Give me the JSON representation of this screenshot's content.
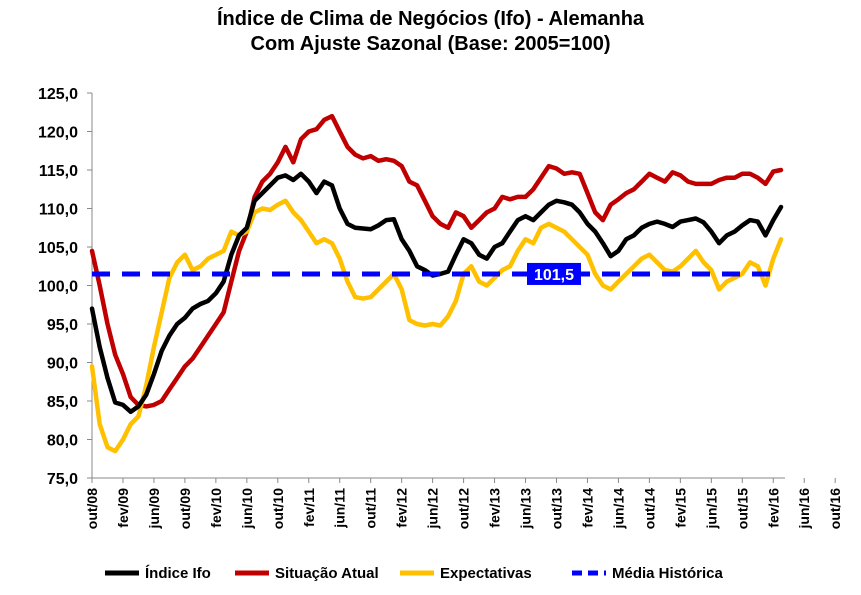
{
  "chart_data": {
    "type": "line",
    "title": "Índice de Clima de Negócios (Ifo) - Alemanha",
    "subtitle": "Com Ajuste Sazonal (Base: 2005=100)",
    "xlabel": "",
    "ylabel": "",
    "ylim": [
      75,
      125
    ],
    "yticks": [
      "75,0",
      "80,0",
      "85,0",
      "90,0",
      "95,0",
      "100,0",
      "105,0",
      "110,0",
      "115,0",
      "120,0",
      "125,0"
    ],
    "xticks": [
      "out/08",
      "fev/09",
      "jun/09",
      "out/09",
      "fev/10",
      "jun/10",
      "out/10",
      "fev/11",
      "jun/11",
      "out/11",
      "fev/12",
      "jun/12",
      "out/12",
      "fev/13",
      "jun/13",
      "out/13",
      "fev/14",
      "jun/14",
      "out/14",
      "fev/15",
      "jun/15",
      "out/15",
      "fev/16",
      "jun/16",
      "out/16"
    ],
    "grid": false,
    "legend_position": "bottom",
    "average_value": 101.5,
    "average_label": "101,5",
    "series": [
      {
        "name": "Índice Ifo",
        "color": "#000000",
        "values": [
          97,
          92,
          88,
          84.8,
          84.5,
          83.6,
          84.3,
          85.8,
          88.5,
          91.5,
          93.5,
          95,
          95.8,
          97,
          97.6,
          98,
          99,
          100.5,
          104,
          106.5,
          107.5,
          111,
          112,
          113,
          114,
          114.3,
          113.7,
          114.5,
          113.5,
          112,
          113.5,
          113,
          110,
          108,
          107.5,
          107.4,
          107.3,
          107.8,
          108.5,
          108.6,
          106,
          104.5,
          102.5,
          102,
          101.3,
          101.5,
          101.8,
          104,
          106,
          105.5,
          104,
          103.5,
          105,
          105.5,
          107,
          108.5,
          109,
          108.5,
          109.5,
          110.5,
          111,
          110.8,
          110.5,
          109.5,
          108,
          107,
          105.5,
          103.8,
          104.5,
          106,
          106.5,
          107.5,
          108,
          108.3,
          108,
          107.6,
          108.3,
          108.5,
          108.7,
          108.2,
          107,
          105.5,
          106.5,
          107,
          107.8,
          108.5,
          108.3,
          106.5,
          108.5,
          110.2
        ]
      },
      {
        "name": "Situação Atual",
        "color": "#C00000",
        "values": [
          104.5,
          100,
          95,
          91,
          88.5,
          85.5,
          84.5,
          84.3,
          84.5,
          85,
          86.5,
          88,
          89.5,
          90.5,
          92,
          93.5,
          95,
          96.5,
          100.5,
          104.5,
          107,
          111.5,
          113.5,
          114.5,
          116,
          118,
          116,
          119,
          120,
          120.3,
          121.5,
          122,
          120,
          118,
          117,
          116.5,
          116.8,
          116.2,
          116.4,
          116.2,
          115.5,
          113.5,
          113,
          111,
          109,
          108,
          107.5,
          109.5,
          109,
          107.5,
          108.5,
          109.5,
          110,
          111.5,
          111.2,
          111.5,
          111.5,
          112.5,
          114,
          115.5,
          115.2,
          114.5,
          114.7,
          114.5,
          112,
          109.5,
          108.5,
          110.5,
          111.2,
          112,
          112.5,
          113.5,
          114.5,
          114,
          113.5,
          114.7,
          114.3,
          113.5,
          113.2,
          113.2,
          113.2,
          113.7,
          114,
          114,
          114.5,
          114.5,
          114,
          113.2,
          114.8,
          115
        ]
      },
      {
        "name": "Expectativas",
        "color": "#FFC000",
        "values": [
          89.5,
          82,
          79,
          78.5,
          80,
          82,
          83,
          87,
          92,
          96.5,
          101,
          103,
          104,
          102,
          102.5,
          103.5,
          104,
          104.5,
          107,
          106.5,
          107,
          109.5,
          110,
          109.8,
          110.5,
          111,
          109.5,
          108.5,
          107,
          105.5,
          106,
          105.5,
          103.5,
          100.5,
          98.5,
          98.3,
          98.5,
          99.5,
          100.5,
          101.5,
          99.5,
          95.5,
          95,
          94.8,
          95,
          94.8,
          96,
          98,
          101.5,
          102.5,
          100.5,
          100,
          101,
          102,
          102.5,
          104.5,
          106,
          105.5,
          107.5,
          108,
          107.5,
          107,
          106,
          105,
          104,
          101.5,
          100,
          99.5,
          100.5,
          101.5,
          102.5,
          103.5,
          104,
          103,
          102,
          101.8,
          102.5,
          103.5,
          104.5,
          103,
          102,
          99.5,
          100.5,
          101,
          101.5,
          103,
          102.5,
          100,
          103.5,
          106
        ]
      },
      {
        "name": "Média Histórica",
        "color": "#0000FF",
        "values": []
      }
    ]
  }
}
